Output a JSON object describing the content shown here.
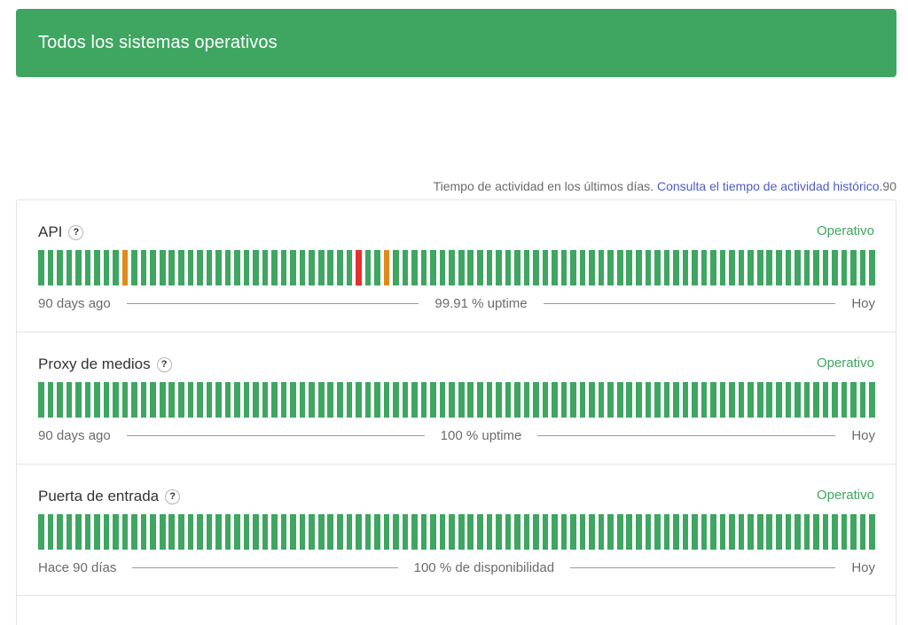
{
  "banner": {
    "title": "Todos los sistemas operativos",
    "color": "#3ea660"
  },
  "uptime_header": {
    "text": "Tiempo de actividad en los últimos días.",
    "link": "Consulta el tiempo de actividad histórico.",
    "days_suffix": "90"
  },
  "colors": {
    "operational": "#3ea660",
    "minor": "#e08a1b",
    "major": "#e5302f"
  },
  "components": [
    {
      "name": "API",
      "status": "Operativo",
      "left_label": "90 days ago",
      "uptime_label": "99.91 % uptime",
      "right_label": "Hoy",
      "bar_count": 90,
      "incidents": [
        {
          "day": 9,
          "level": "minor"
        },
        {
          "day": 34,
          "level": "major"
        },
        {
          "day": 37,
          "level": "minor"
        }
      ]
    },
    {
      "name": "Proxy de medios",
      "status": "Operativo",
      "left_label": "90 days ago",
      "uptime_label": "100 % uptime",
      "right_label": "Hoy",
      "bar_count": 90,
      "incidents": []
    },
    {
      "name": "Puerta de entrada",
      "status": "Operativo",
      "left_label": "Hace 90 días",
      "uptime_label": "100 % de disponibilidad",
      "right_label": "Hoy",
      "bar_count": 90,
      "incidents": []
    }
  ]
}
